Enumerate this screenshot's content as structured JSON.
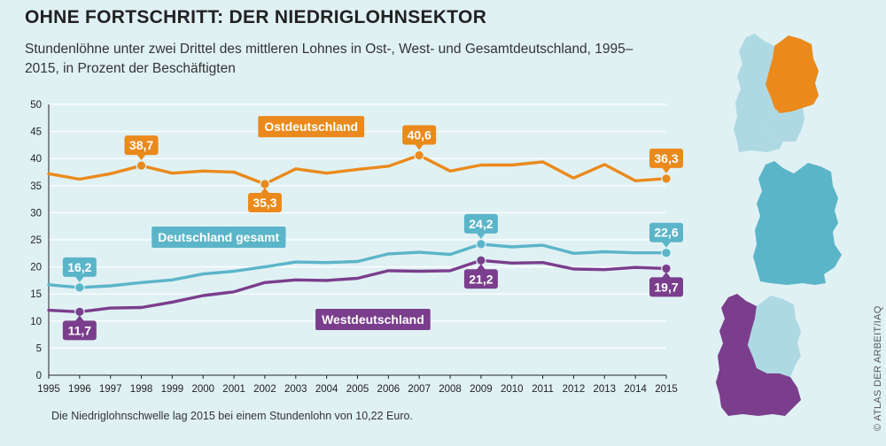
{
  "header": {
    "title": "OHNE FORTSCHRITT: DER NIEDRIGLOHNSEKTOR",
    "subtitle": "Stundenlöhne unter zwei Drittel des mittleren Lohnes in Ost-, West- und Gesamtdeutschland, 1995–2015, in Prozent der Beschäftigten"
  },
  "footnote": "Die Niedriglohnschwelle lag 2015 bei einem Stundenlohn von 10,22 Euro.",
  "credit": "© ATLAS DER ARBEIT/IAQ",
  "chart_data": {
    "type": "line",
    "title": "OHNE FORTSCHRITT: DER NIEDRIGLOHNSEKTOR",
    "subtitle": "Stundenlöhne unter zwei Drittel des mittleren Lohnes in Ost-, West- und Gesamtdeutschland, 1995–2015, in Prozent der Beschäftigten",
    "xlabel": "",
    "ylabel": "",
    "x": [
      1995,
      1996,
      1997,
      1998,
      1999,
      2000,
      2001,
      2002,
      2003,
      2004,
      2005,
      2006,
      2007,
      2008,
      2009,
      2010,
      2011,
      2012,
      2013,
      2014,
      2015
    ],
    "ylim": [
      0,
      50
    ],
    "yticks": [
      0,
      5,
      10,
      15,
      20,
      25,
      30,
      35,
      40,
      45,
      50
    ],
    "grid": true,
    "series": [
      {
        "name": "Ostdeutschland",
        "color": "#ea8a1c",
        "values": [
          37.2,
          36.2,
          37.2,
          38.7,
          37.3,
          37.7,
          37.5,
          35.3,
          38.1,
          37.3,
          38.0,
          38.6,
          40.6,
          37.7,
          38.8,
          38.8,
          39.4,
          36.4,
          38.9,
          35.9,
          36.3
        ],
        "highlights": [
          {
            "year": 1998,
            "label": "38,7",
            "pos": "above"
          },
          {
            "year": 2002,
            "label": "35,3",
            "pos": "below"
          },
          {
            "year": 2007,
            "label": "40,6",
            "pos": "above"
          },
          {
            "year": 2015,
            "label": "36,3",
            "pos": "above"
          }
        ]
      },
      {
        "name": "Deutschland gesamt",
        "color": "#5bb5c8",
        "values": [
          16.7,
          16.2,
          16.5,
          17.1,
          17.6,
          18.7,
          19.2,
          20.0,
          20.9,
          20.8,
          21.0,
          22.4,
          22.7,
          22.3,
          24.2,
          23.7,
          24.0,
          22.5,
          22.8,
          22.6,
          22.6
        ],
        "highlights": [
          {
            "year": 1996,
            "label": "16,2",
            "pos": "above"
          },
          {
            "year": 2009,
            "label": "24,2",
            "pos": "above"
          },
          {
            "year": 2015,
            "label": "22,6",
            "pos": "above"
          }
        ]
      },
      {
        "name": "Westdeutschland",
        "color": "#7a3e8c",
        "values": [
          12.0,
          11.7,
          12.4,
          12.5,
          13.5,
          14.7,
          15.4,
          17.1,
          17.6,
          17.5,
          17.9,
          19.3,
          19.2,
          19.3,
          21.2,
          20.7,
          20.8,
          19.6,
          19.5,
          19.9,
          19.7
        ],
        "highlights": [
          {
            "year": 1996,
            "label": "11,7",
            "pos": "below"
          },
          {
            "year": 2009,
            "label": "21,2",
            "pos": "below"
          },
          {
            "year": 2015,
            "label": "19,7",
            "pos": "below"
          }
        ]
      }
    ],
    "series_labels": [
      {
        "series": 0,
        "text": "Ostdeutschland",
        "at_year": 2003.5,
        "at_value": 45.9
      },
      {
        "series": 1,
        "text": "Deutschland gesamt",
        "at_year": 2000.5,
        "at_value": 25.5
      },
      {
        "series": 2,
        "text": "Westdeutschland",
        "at_year": 2005.5,
        "at_value": 10.3
      }
    ]
  },
  "maps": [
    {
      "name": "map-ostdeutschland",
      "highlight": "Ostdeutschland",
      "highlight_color": "#ea8a1c",
      "other_color": "#aed9e3"
    },
    {
      "name": "map-deutschland-gesamt",
      "highlight": "Deutschland gesamt",
      "highlight_color": "#5bb5c8"
    },
    {
      "name": "map-westdeutschland",
      "highlight": "Westdeutschland",
      "highlight_color": "#7a3e8c",
      "other_color": "#aed9e3"
    }
  ]
}
